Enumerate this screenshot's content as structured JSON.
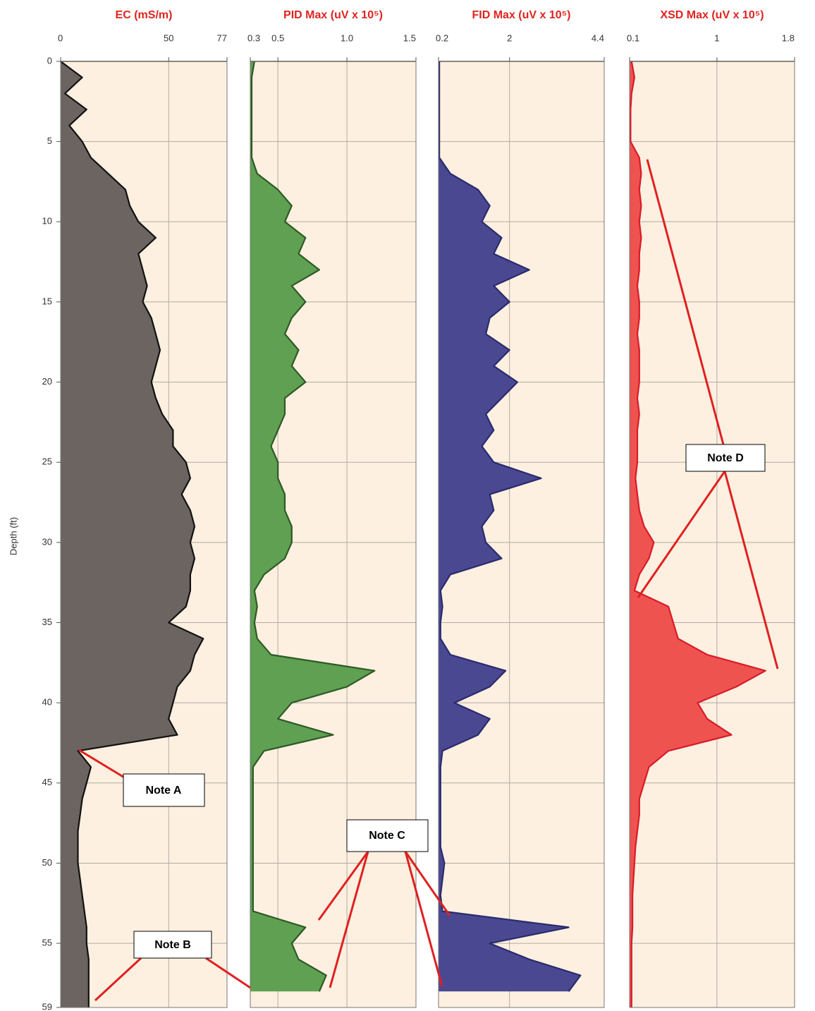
{
  "ylabel": "Depth (ft)",
  "annotations": [
    "Note A",
    "Note B",
    "Note C",
    "Note D"
  ],
  "chart_data": [
    {
      "type": "line",
      "title": "EC (mS/m)",
      "fill_color": "#6b6461",
      "color": "#111111",
      "xlim": [
        0,
        77
      ],
      "xticks": [
        0,
        50,
        77
      ],
      "ylim": [
        0,
        59
      ],
      "yticks": [
        0,
        5,
        10,
        15,
        20,
        25,
        30,
        35,
        40,
        45,
        50,
        55,
        59
      ],
      "grid": true,
      "y": [
        0,
        1,
        2,
        3,
        4,
        5,
        6,
        7,
        8,
        9,
        10,
        11,
        12,
        13,
        14,
        15,
        16,
        17,
        18,
        19,
        20,
        21,
        22,
        23,
        24,
        25,
        26,
        27,
        28,
        29,
        30,
        31,
        32,
        33,
        34,
        35,
        36,
        37,
        38,
        39,
        40,
        41,
        42,
        43,
        44,
        45,
        46,
        47,
        48,
        49,
        50,
        51,
        52,
        53,
        54,
        55,
        56,
        57,
        58,
        59
      ],
      "values": [
        0,
        10,
        2,
        12,
        4,
        10,
        14,
        22,
        30,
        32,
        36,
        44,
        36,
        38,
        40,
        38,
        42,
        44,
        46,
        44,
        42,
        44,
        47,
        52,
        52,
        58,
        60,
        56,
        60,
        62,
        60,
        62,
        60,
        60,
        58,
        50,
        66,
        62,
        60,
        54,
        52,
        50,
        54,
        8,
        14,
        12,
        10,
        9,
        8,
        8,
        8,
        9,
        10,
        11,
        12,
        12,
        13,
        13,
        13,
        13
      ]
    },
    {
      "type": "line",
      "title": "PID Max (uV x 10⁵)",
      "fill_color": "#5fa052",
      "color": "#2d5a25",
      "xlim": [
        0.3,
        1.5
      ],
      "xticks": [
        0.3,
        0.5,
        {
          "value": 1,
          "label": "1.0"
        },
        1.5
      ],
      "ylim": [
        0,
        59
      ],
      "grid": true,
      "y": [
        0,
        1,
        2,
        3,
        4,
        5,
        6,
        7,
        8,
        9,
        10,
        11,
        12,
        13,
        14,
        15,
        16,
        17,
        18,
        19,
        20,
        21,
        22,
        23,
        24,
        25,
        26,
        27,
        28,
        29,
        30,
        31,
        32,
        33,
        34,
        35,
        36,
        37,
        38,
        39,
        40,
        41,
        42,
        43,
        44,
        45,
        46,
        47,
        48,
        49,
        50,
        51,
        52,
        53,
        54,
        55,
        56,
        57,
        58,
        59
      ],
      "values": [
        0.33,
        0.31,
        0.31,
        0.31,
        0.31,
        0.31,
        0.31,
        0.35,
        0.5,
        0.6,
        0.55,
        0.7,
        0.65,
        0.8,
        0.6,
        0.7,
        0.6,
        0.55,
        0.65,
        0.6,
        0.7,
        0.55,
        0.55,
        0.5,
        0.45,
        0.5,
        0.5,
        0.55,
        0.55,
        0.6,
        0.6,
        0.55,
        0.4,
        0.33,
        0.35,
        0.33,
        0.35,
        0.45,
        1.2,
        1.0,
        0.6,
        0.5,
        0.9,
        0.4,
        0.32,
        0.32,
        0.32,
        0.32,
        0.32,
        0.32,
        0.32,
        0.32,
        0.32,
        0.32,
        0.7,
        0.6,
        0.65,
        0.85,
        0.8,
        null
      ]
    },
    {
      "type": "line",
      "title": "FID Max (uV x 10⁵)",
      "fill_color": "#4b4892",
      "color": "#2a2a6e",
      "xlim": [
        0.2,
        4.4
      ],
      "xticks": [
        0.2,
        2,
        4.4
      ],
      "ylim": [
        0,
        59
      ],
      "grid": true,
      "y": [
        0,
        1,
        2,
        3,
        4,
        5,
        6,
        7,
        8,
        9,
        10,
        11,
        12,
        13,
        14,
        15,
        16,
        17,
        18,
        19,
        20,
        21,
        22,
        23,
        24,
        25,
        26,
        27,
        28,
        29,
        30,
        31,
        32,
        33,
        34,
        35,
        36,
        37,
        38,
        39,
        40,
        41,
        42,
        43,
        44,
        45,
        46,
        47,
        48,
        49,
        50,
        51,
        52,
        53,
        54,
        55,
        56,
        57,
        58,
        59
      ],
      "values": [
        0.22,
        0.22,
        0.22,
        0.22,
        0.22,
        0.22,
        0.22,
        0.5,
        1.2,
        1.5,
        1.3,
        1.8,
        1.6,
        2.5,
        1.6,
        2.0,
        1.5,
        1.4,
        2.0,
        1.6,
        2.2,
        1.8,
        1.4,
        1.6,
        1.3,
        1.6,
        2.8,
        1.5,
        1.6,
        1.3,
        1.4,
        1.8,
        0.5,
        0.25,
        0.3,
        0.25,
        0.25,
        0.5,
        1.9,
        1.5,
        0.6,
        1.5,
        1.2,
        0.3,
        0.25,
        0.25,
        0.25,
        0.25,
        0.25,
        0.25,
        0.35,
        0.3,
        0.25,
        0.3,
        3.5,
        1.5,
        2.5,
        3.8,
        3.5,
        null
      ]
    },
    {
      "type": "line",
      "title": "XSD Max (uV x 10⁵)",
      "fill_color": "#ef5350",
      "color": "#d81b2a",
      "xlim": [
        0.1,
        1.8
      ],
      "xticks": [
        0.1,
        1,
        1.8
      ],
      "ylim": [
        0,
        59
      ],
      "grid": true,
      "y": [
        0,
        1,
        2,
        3,
        4,
        5,
        6,
        7,
        8,
        9,
        10,
        11,
        12,
        13,
        14,
        15,
        16,
        17,
        18,
        19,
        20,
        21,
        22,
        23,
        24,
        25,
        26,
        27,
        28,
        29,
        30,
        31,
        32,
        33,
        34,
        35,
        36,
        37,
        38,
        39,
        40,
        41,
        42,
        43,
        44,
        45,
        46,
        47,
        48,
        49,
        50,
        51,
        52,
        53,
        54,
        55,
        56,
        57,
        58,
        59
      ],
      "values": [
        0.12,
        0.15,
        0.12,
        0.11,
        0.11,
        0.11,
        0.2,
        0.22,
        0.2,
        0.22,
        0.2,
        0.22,
        0.2,
        0.2,
        0.18,
        0.2,
        0.2,
        0.18,
        0.2,
        0.2,
        0.2,
        0.18,
        0.2,
        0.18,
        0.18,
        0.18,
        0.16,
        0.18,
        0.2,
        0.25,
        0.35,
        0.3,
        0.2,
        0.15,
        0.5,
        0.55,
        0.6,
        0.9,
        1.5,
        1.2,
        0.8,
        0.9,
        1.15,
        0.5,
        0.3,
        0.25,
        0.2,
        0.2,
        0.18,
        0.16,
        0.15,
        0.14,
        0.13,
        0.13,
        0.13,
        0.12,
        0.12,
        0.12,
        0.12,
        0.12
      ]
    }
  ]
}
